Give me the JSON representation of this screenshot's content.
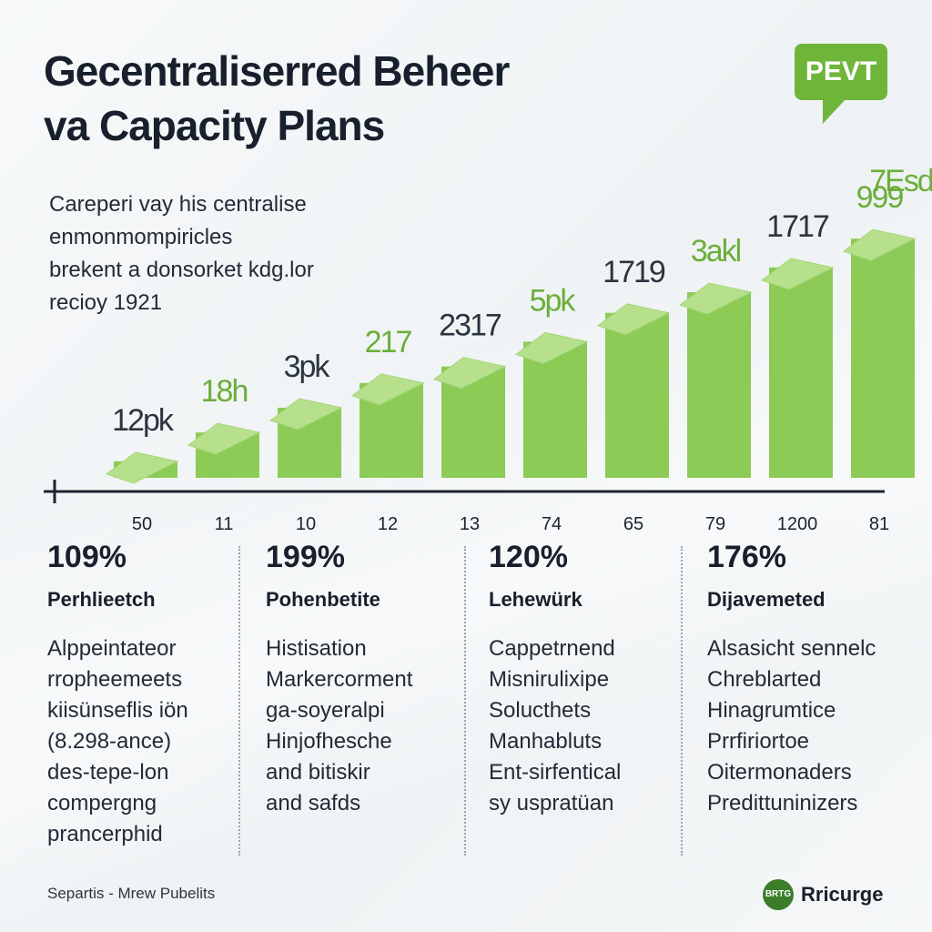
{
  "header": {
    "title_line1": "Gecentraliserred Beheer",
    "title_line2": "va Capacity Plans",
    "badge": "PEVT"
  },
  "intro": {
    "lines": [
      "Careperi vay his centralise",
      "enmonmompiricles",
      "brekent a donsorket kdg.lor",
      "recioy 1921"
    ]
  },
  "chart_data": {
    "type": "bar",
    "title": "",
    "categories": [
      "50",
      "11",
      "10",
      "12",
      "13",
      "74",
      "65",
      "79",
      "1200",
      "81"
    ],
    "values": [
      20,
      55,
      85,
      115,
      135,
      165,
      200,
      225,
      255,
      290
    ],
    "data_labels": [
      "12pk",
      "18h",
      "3pk",
      "217",
      "2317",
      "5pk",
      "1719",
      "3akl",
      "1717",
      "999"
    ],
    "extra_label": "7Esd",
    "ylim": [
      0,
      320
    ],
    "xlabel": "",
    "ylabel": "",
    "colors": {
      "bar": "#8bcb56",
      "bar_top": "#b7e08c",
      "accent_label": "#6cae3a",
      "dark_label": "#2a3540",
      "axis": "#1b2430"
    }
  },
  "stats": [
    {
      "value": "109%",
      "label": "Perhlieetch",
      "lines": [
        "Alppeintateor",
        "rropheemeets",
        "kiisünseflis iön",
        "(8.298-ance)",
        "des-tepe-lon",
        "compergng",
        "prancerphid"
      ]
    },
    {
      "value": "199%",
      "label": "Pohenbetite",
      "lines": [
        "Histisation",
        "Markercorment",
        "ga-soyeralpi",
        "Hinjofhesche",
        "and bitiskir",
        "and safds"
      ]
    },
    {
      "value": "120%",
      "label": "Lehewürk",
      "lines": [
        "Cappetrnend",
        "Misnirulixipe",
        "Solucthets",
        "Manhabluts",
        "Ent-sirfentical",
        "sy uspratüan"
      ]
    },
    {
      "value": "176%",
      "label": "Dijavemeted",
      "lines": [
        "Alsasicht sennelc",
        "Chreblarted",
        "Hinagrumtice",
        "Prrfiriortoe",
        "Oitermonaders",
        "Predittuninizers"
      ]
    }
  ],
  "footer": {
    "source": "Separtis - Mrew Pubelits",
    "brand_mark": "BRTG",
    "brand_name": "Rricurge"
  }
}
